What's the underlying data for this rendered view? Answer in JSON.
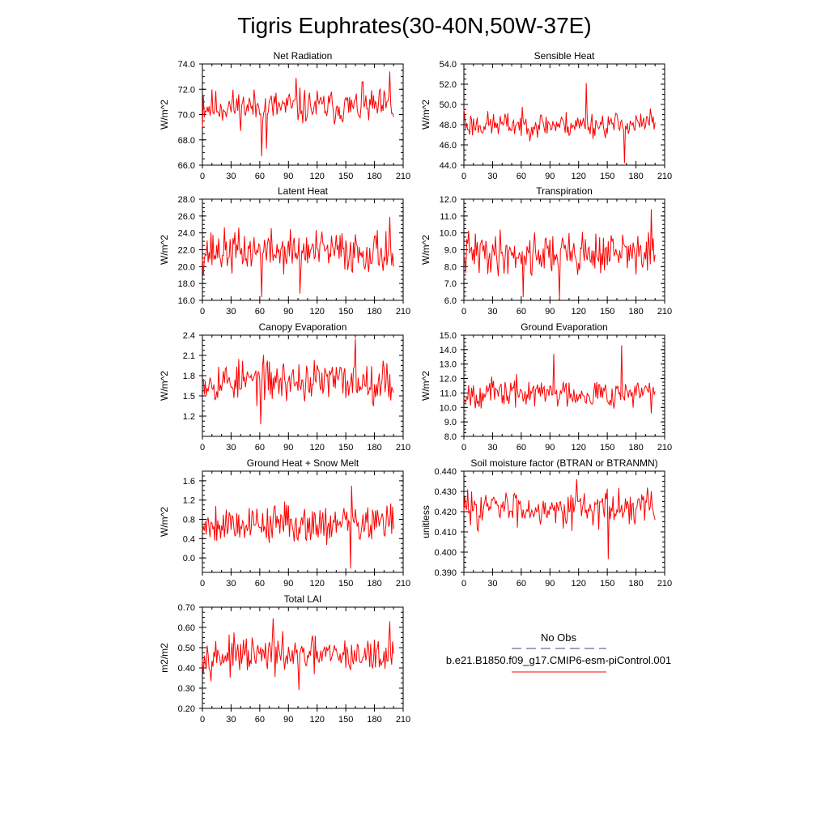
{
  "figure": {
    "title": "Tigris Euphrates(30-40N,50W-37E)",
    "series_color": "#ff0000",
    "legend": {
      "obs_label": "No Obs",
      "model_label": "b.e21.B1850.f09_g17.CMIP6-esm-piControl.001",
      "obs_line_color": "#444488",
      "model_line_color": "#ff0000"
    }
  },
  "chart_data": [
    {
      "type": "line",
      "title": "Net Radiation",
      "xlabel": "",
      "ylabel": "W/m^2",
      "xlim": [
        0,
        210
      ],
      "ylim": [
        66,
        74
      ],
      "xticks": [
        0,
        30,
        60,
        90,
        120,
        150,
        180,
        210
      ],
      "yticks": [
        66,
        68,
        70,
        72,
        74
      ],
      "ytick_labels": [
        "66.0",
        "68.0",
        "70.0",
        "72.0",
        "74.0"
      ],
      "n_points": 200,
      "start_value": 69.0,
      "mean": 70.6,
      "spread": 1.2,
      "seed": 11,
      "peaks": [
        [
          1,
          71.5
        ],
        [
          62,
          66.7
        ],
        [
          67,
          67.3
        ],
        [
          98,
          72.9
        ],
        [
          168,
          72.6
        ],
        [
          196,
          73.4
        ],
        [
          200,
          69.8
        ]
      ]
    },
    {
      "type": "line",
      "title": "Sensible Heat",
      "xlabel": "",
      "ylabel": "W/m^2",
      "xlim": [
        0,
        210
      ],
      "ylim": [
        44,
        54
      ],
      "xticks": [
        0,
        30,
        60,
        90,
        120,
        150,
        180,
        210
      ],
      "yticks": [
        44,
        46,
        48,
        50,
        52,
        54
      ],
      "ytick_labels": [
        "44.0",
        "46.0",
        "48.0",
        "50.0",
        "52.0",
        "54.0"
      ],
      "n_points": 200,
      "start_value": 49.5,
      "mean": 48.0,
      "spread": 1.1,
      "seed": 23,
      "peaks": [
        [
          128,
          52.1
        ],
        [
          168,
          44.2
        ],
        [
          195,
          49.6
        ]
      ]
    },
    {
      "type": "line",
      "title": "Latent Heat",
      "xlabel": "",
      "ylabel": "W/m^2",
      "xlim": [
        0,
        210
      ],
      "ylim": [
        16,
        28
      ],
      "xticks": [
        0,
        30,
        60,
        90,
        120,
        150,
        180,
        210
      ],
      "yticks": [
        16,
        18,
        20,
        22,
        24,
        26,
        28
      ],
      "ytick_labels": [
        "16.0",
        "18.0",
        "20.0",
        "22.0",
        "24.0",
        "26.0",
        "28.0"
      ],
      "n_points": 200,
      "start_value": 21.0,
      "mean": 21.8,
      "spread": 2.2,
      "seed": 37,
      "peaks": [
        [
          62,
          16.4
        ],
        [
          102,
          16.8
        ],
        [
          196,
          25.9
        ],
        [
          200,
          20.0
        ]
      ]
    },
    {
      "type": "line",
      "title": "Transpiration",
      "xlabel": "",
      "ylabel": "W/m^2",
      "xlim": [
        0,
        210
      ],
      "ylim": [
        6,
        12
      ],
      "xticks": [
        0,
        30,
        60,
        90,
        120,
        150,
        180,
        210
      ],
      "yticks": [
        6,
        7,
        8,
        9,
        10,
        11,
        12
      ],
      "ytick_labels": [
        "6.0",
        "7.0",
        "8.0",
        "9.0",
        "10.0",
        "11.0",
        "12.0"
      ],
      "n_points": 200,
      "start_value": 8.5,
      "mean": 8.8,
      "spread": 1.1,
      "seed": 41,
      "peaks": [
        [
          62,
          6.2
        ],
        [
          100,
          6.1
        ],
        [
          196,
          11.4
        ],
        [
          200,
          8.7
        ]
      ]
    },
    {
      "type": "line",
      "title": "Canopy Evaporation",
      "xlabel": "",
      "ylabel": "W/m^2",
      "xlim": [
        0,
        210
      ],
      "ylim": [
        0.9,
        2.4
      ],
      "xticks": [
        0,
        30,
        60,
        90,
        120,
        150,
        180,
        210
      ],
      "yticks": [
        1.2,
        1.5,
        1.8,
        2.1,
        2.4
      ],
      "ytick_labels": [
        "1.2",
        "1.5",
        "1.8",
        "2.1",
        "2.4"
      ],
      "n_points": 200,
      "start_value": 1.75,
      "mean": 1.72,
      "spread": 0.27,
      "seed": 53,
      "peaks": [
        [
          61,
          1.08
        ],
        [
          160,
          2.35
        ],
        [
          200,
          1.55
        ]
      ]
    },
    {
      "type": "line",
      "title": "Ground Evaporation",
      "xlabel": "",
      "ylabel": "W/m^2",
      "xlim": [
        0,
        210
      ],
      "ylim": [
        8,
        15
      ],
      "xticks": [
        0,
        30,
        60,
        90,
        120,
        150,
        180,
        210
      ],
      "yticks": [
        8,
        9,
        10,
        11,
        12,
        13,
        14,
        15
      ],
      "ytick_labels": [
        "8.0",
        "9.0",
        "10.0",
        "11.0",
        "12.0",
        "13.0",
        "14.0",
        "15.0"
      ],
      "n_points": 200,
      "start_value": 10.5,
      "mean": 11.0,
      "spread": 0.85,
      "seed": 67,
      "peaks": [
        [
          94,
          13.7
        ],
        [
          165,
          14.3
        ],
        [
          196,
          9.6
        ]
      ]
    },
    {
      "type": "line",
      "title": "Ground Heat + Snow Melt",
      "xlabel": "",
      "ylabel": "W/m^2",
      "xlim": [
        0,
        210
      ],
      "ylim": [
        -0.3,
        1.8
      ],
      "xticks": [
        0,
        30,
        60,
        90,
        120,
        150,
        180,
        210
      ],
      "yticks": [
        0.0,
        0.4,
        0.8,
        1.2,
        1.6
      ],
      "ytick_labels": [
        "0.0",
        "0.4",
        "0.8",
        "1.2",
        "1.6"
      ],
      "n_points": 200,
      "start_value": 0.6,
      "mean": 0.72,
      "spread": 0.35,
      "seed": 79,
      "peaks": [
        [
          155,
          -0.22
        ],
        [
          156,
          1.5
        ],
        [
          200,
          0.6
        ]
      ]
    },
    {
      "type": "line",
      "title": "Soil moisture factor (BTRAN or BTRANMN)",
      "xlabel": "",
      "ylabel": "unitless",
      "xlim": [
        0,
        210
      ],
      "ylim": [
        0.39,
        0.44
      ],
      "xticks": [
        0,
        30,
        60,
        90,
        120,
        150,
        180,
        210
      ],
      "yticks": [
        0.39,
        0.4,
        0.41,
        0.42,
        0.43,
        0.44
      ],
      "ytick_labels": [
        "0.390",
        "0.400",
        "0.410",
        "0.420",
        "0.430",
        "0.440"
      ],
      "n_points": 200,
      "start_value": 0.42,
      "mean": 0.422,
      "spread": 0.0075,
      "seed": 83,
      "peaks": [
        [
          118,
          0.436
        ],
        [
          151,
          0.3965
        ],
        [
          200,
          0.416
        ]
      ]
    },
    {
      "type": "line",
      "title": "Total LAI",
      "xlabel": "",
      "ylabel": "m2/m2",
      "xlim": [
        0,
        210
      ],
      "ylim": [
        0.2,
        0.7
      ],
      "xticks": [
        0,
        30,
        60,
        90,
        120,
        150,
        180,
        210
      ],
      "yticks": [
        0.2,
        0.3,
        0.4,
        0.5,
        0.6,
        0.7
      ],
      "ytick_labels": [
        "0.20",
        "0.30",
        "0.40",
        "0.50",
        "0.60",
        "0.70"
      ],
      "n_points": 200,
      "start_value": 0.44,
      "mean": 0.46,
      "spread": 0.075,
      "seed": 97,
      "peaks": [
        [
          74,
          0.645
        ],
        [
          101,
          0.29
        ],
        [
          196,
          0.63
        ],
        [
          200,
          0.47
        ]
      ]
    }
  ]
}
